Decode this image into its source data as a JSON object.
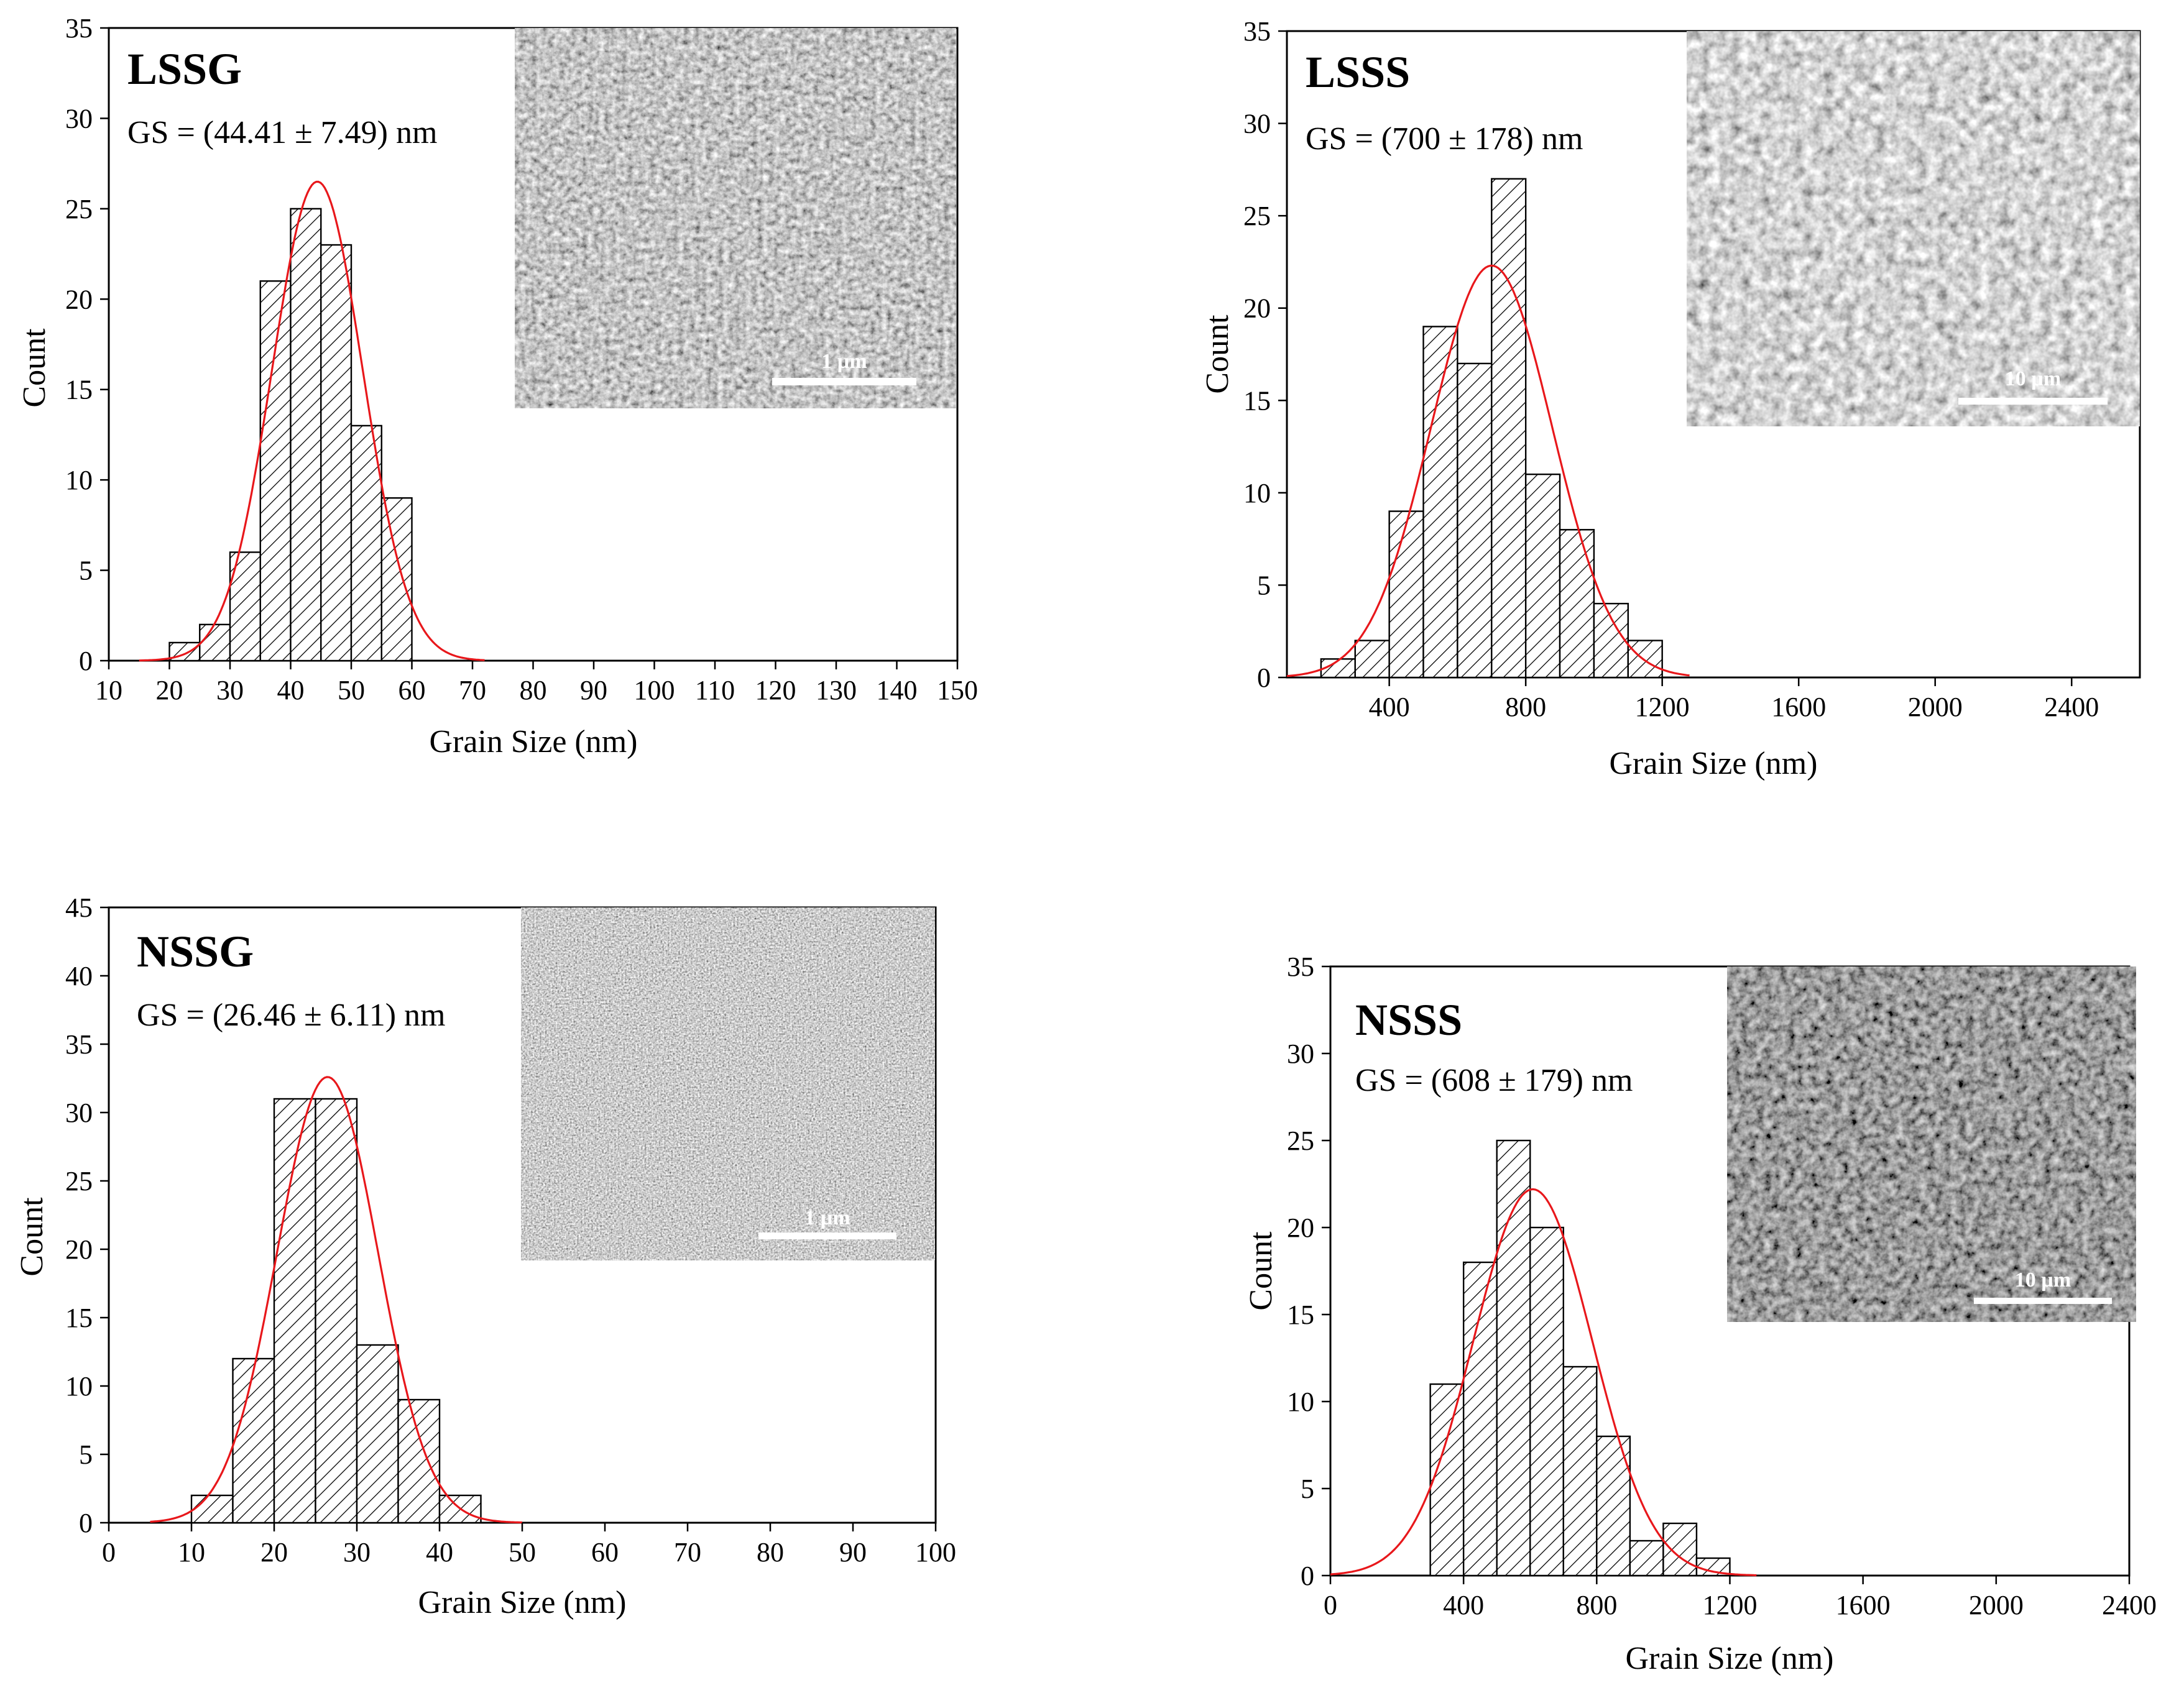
{
  "charts": [
    {
      "type": "bar",
      "title": "LSSG",
      "annotation": "GS = (44.41 ± 7.49) nm",
      "xlabel": "Grain Size (nm)",
      "ylabel": "Count",
      "xlim": [
        10,
        150
      ],
      "ylim": [
        0,
        35
      ],
      "xticks": [
        10,
        20,
        30,
        40,
        50,
        60,
        70,
        80,
        90,
        100,
        110,
        120,
        130,
        140,
        150
      ],
      "yticks": [
        0,
        5,
        10,
        15,
        20,
        25,
        30,
        35
      ],
      "bin_width": 5,
      "bins": [
        17.5,
        22.5,
        27.5,
        32.5,
        37.5,
        42.5,
        47.5,
        52.5,
        57.5
      ],
      "counts": [
        0,
        1,
        2,
        6,
        21,
        25,
        23,
        13,
        9
      ],
      "fit": {
        "mean": 44.41,
        "sd": 7.49,
        "peak": 26.5,
        "range": [
          15,
          72
        ]
      },
      "inset": {
        "scale_bar": "1 µm",
        "tone": "fine"
      }
    },
    {
      "type": "bar",
      "title": "LSSS",
      "annotation": "GS = (700 ± 178) nm",
      "xlabel": "Grain Size (nm)",
      "ylabel": "Count",
      "xlim": [
        100,
        2600
      ],
      "ylim": [
        0,
        35
      ],
      "xticks": [
        400,
        800,
        1200,
        1600,
        2000,
        2400
      ],
      "yticks": [
        0,
        5,
        10,
        15,
        20,
        25,
        30,
        35
      ],
      "bin_width": 100,
      "bins": [
        250,
        350,
        450,
        550,
        650,
        750,
        850,
        950,
        1050,
        1150
      ],
      "counts": [
        1,
        2,
        9,
        19,
        17,
        27,
        11,
        8,
        4,
        2
      ],
      "fit": {
        "mean": 700,
        "sd": 178,
        "peak": 22.3,
        "range": [
          100,
          1280
        ]
      },
      "inset": {
        "scale_bar": "10 µm",
        "tone": "coarse"
      }
    },
    {
      "type": "bar",
      "title": "NSSG",
      "annotation": "GS = (26.46 ± 6.11) nm",
      "xlabel": "Grain Size (nm)",
      "ylabel": "Count",
      "xlim": [
        0,
        100
      ],
      "ylim": [
        0,
        45
      ],
      "xticks": [
        0,
        10,
        20,
        30,
        40,
        50,
        60,
        70,
        80,
        90,
        100
      ],
      "yticks": [
        0,
        5,
        10,
        15,
        20,
        25,
        30,
        35,
        40,
        45
      ],
      "bin_width": 5,
      "bins": [
        12.5,
        17.5,
        22.5,
        27.5,
        32.5,
        37.5,
        42.5
      ],
      "counts": [
        2,
        12,
        31,
        31,
        13,
        9,
        2
      ],
      "fit": {
        "mean": 26.46,
        "sd": 6.11,
        "peak": 32.6,
        "range": [
          5,
          50
        ]
      },
      "inset": {
        "scale_bar": "1 µm",
        "tone": "speckle"
      }
    },
    {
      "type": "bar",
      "title": "NSSS",
      "annotation": "GS = (608 ± 179) nm",
      "xlabel": "Grain Size (nm)",
      "ylabel": "Count",
      "xlim": [
        0,
        2400
      ],
      "ylim": [
        0,
        35
      ],
      "xticks": [
        0,
        400,
        800,
        1200,
        1600,
        2000,
        2400
      ],
      "yticks": [
        0,
        5,
        10,
        15,
        20,
        25,
        30,
        35
      ],
      "bin_width": 100,
      "bins": [
        350,
        450,
        550,
        650,
        750,
        850,
        950,
        1050,
        1150
      ],
      "counts": [
        11,
        18,
        25,
        20,
        12,
        8,
        2,
        3,
        1
      ],
      "fit": {
        "mean": 608,
        "sd": 179,
        "peak": 22.2,
        "range": [
          0,
          1280
        ]
      },
      "inset": {
        "scale_bar": "10 µm",
        "tone": "dark"
      }
    }
  ],
  "colors": {
    "fit": "#e8171b",
    "axis": "#000000",
    "bar_fill": "#ffffff"
  }
}
